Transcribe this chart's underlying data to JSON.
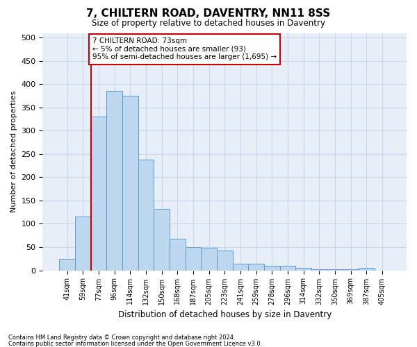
{
  "title": "7, CHILTERN ROAD, DAVENTRY, NN11 8SS",
  "subtitle": "Size of property relative to detached houses in Daventry",
  "xlabel": "Distribution of detached houses by size in Daventry",
  "ylabel": "Number of detached properties",
  "bar_labels": [
    "41sqm",
    "59sqm",
    "77sqm",
    "96sqm",
    "114sqm",
    "132sqm",
    "150sqm",
    "168sqm",
    "187sqm",
    "205sqm",
    "223sqm",
    "241sqm",
    "259sqm",
    "278sqm",
    "296sqm",
    "314sqm",
    "332sqm",
    "350sqm",
    "369sqm",
    "387sqm",
    "405sqm"
  ],
  "bar_values": [
    25,
    115,
    330,
    385,
    375,
    238,
    132,
    68,
    50,
    48,
    42,
    15,
    15,
    10,
    10,
    5,
    2,
    2,
    2,
    6,
    0
  ],
  "bar_color": "#bdd7ee",
  "bar_edge_color": "#5b9bd5",
  "highlight_index": 2,
  "highlight_line_color": "#cc0000",
  "ylim": [
    0,
    510
  ],
  "yticks": [
    0,
    50,
    100,
    150,
    200,
    250,
    300,
    350,
    400,
    450,
    500
  ],
  "annotation_text": "7 CHILTERN ROAD: 73sqm\n← 5% of detached houses are smaller (93)\n95% of semi-detached houses are larger (1,695) →",
  "annotation_box_color": "#ffffff",
  "annotation_box_edge": "#cc0000",
  "footer1": "Contains HM Land Registry data © Crown copyright and database right 2024.",
  "footer2": "Contains public sector information licensed under the Open Government Licence v3.0.",
  "grid_color": "#c8d4e8",
  "background_color": "#e8eef8"
}
